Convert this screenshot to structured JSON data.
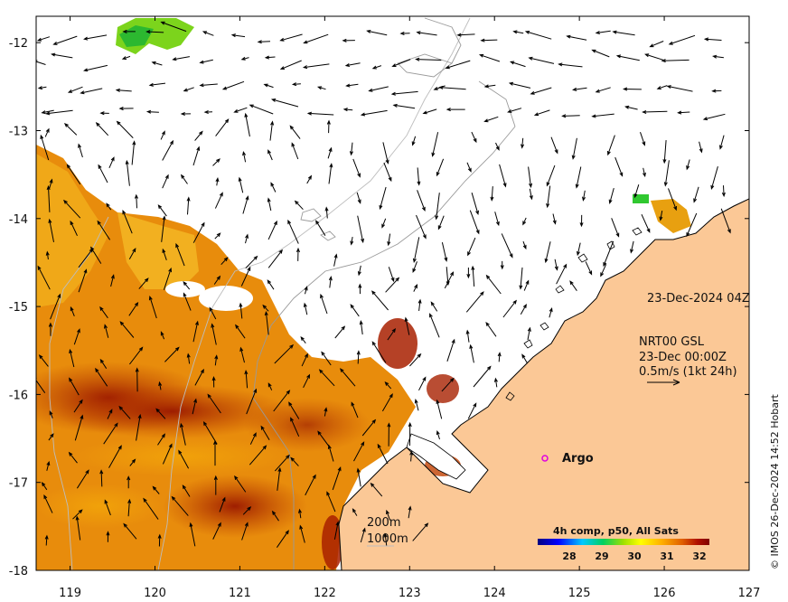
{
  "map": {
    "lon_ticks": [
      "119",
      "120",
      "121",
      "122",
      "123",
      "124",
      "125",
      "126",
      "127"
    ],
    "lat_ticks": [
      "-12",
      "-13",
      "-14",
      "-15",
      "-16",
      "-17",
      "-18"
    ],
    "lon_range": [
      118.6,
      127.0
    ],
    "lat_range": [
      -11.7,
      -18.0
    ]
  },
  "annotations": {
    "timestamp": "23-Dec-2024 04Z",
    "current_source": "NRT00 GSL",
    "current_time": "23-Dec 00:00Z",
    "current_scale": "0.5m/s (1kt 24h)",
    "argo_label": "Argo",
    "contour_200": "200m",
    "contour_1000": "1000m"
  },
  "colorbar": {
    "title": "4h comp, p50, All Sats",
    "ticks": [
      "28",
      "29",
      "30",
      "31",
      "32"
    ],
    "colors": [
      "#000080",
      "#0000ff",
      "#00c8ff",
      "#00d060",
      "#a0e000",
      "#ffff00",
      "#ffb000",
      "#e06000",
      "#b01000",
      "#800000"
    ]
  },
  "credit": "© IMOS 26-Dec-2024 14:52 Hobart",
  "colors": {
    "land": "#fbc896",
    "argo_marker": "#e000e0"
  }
}
